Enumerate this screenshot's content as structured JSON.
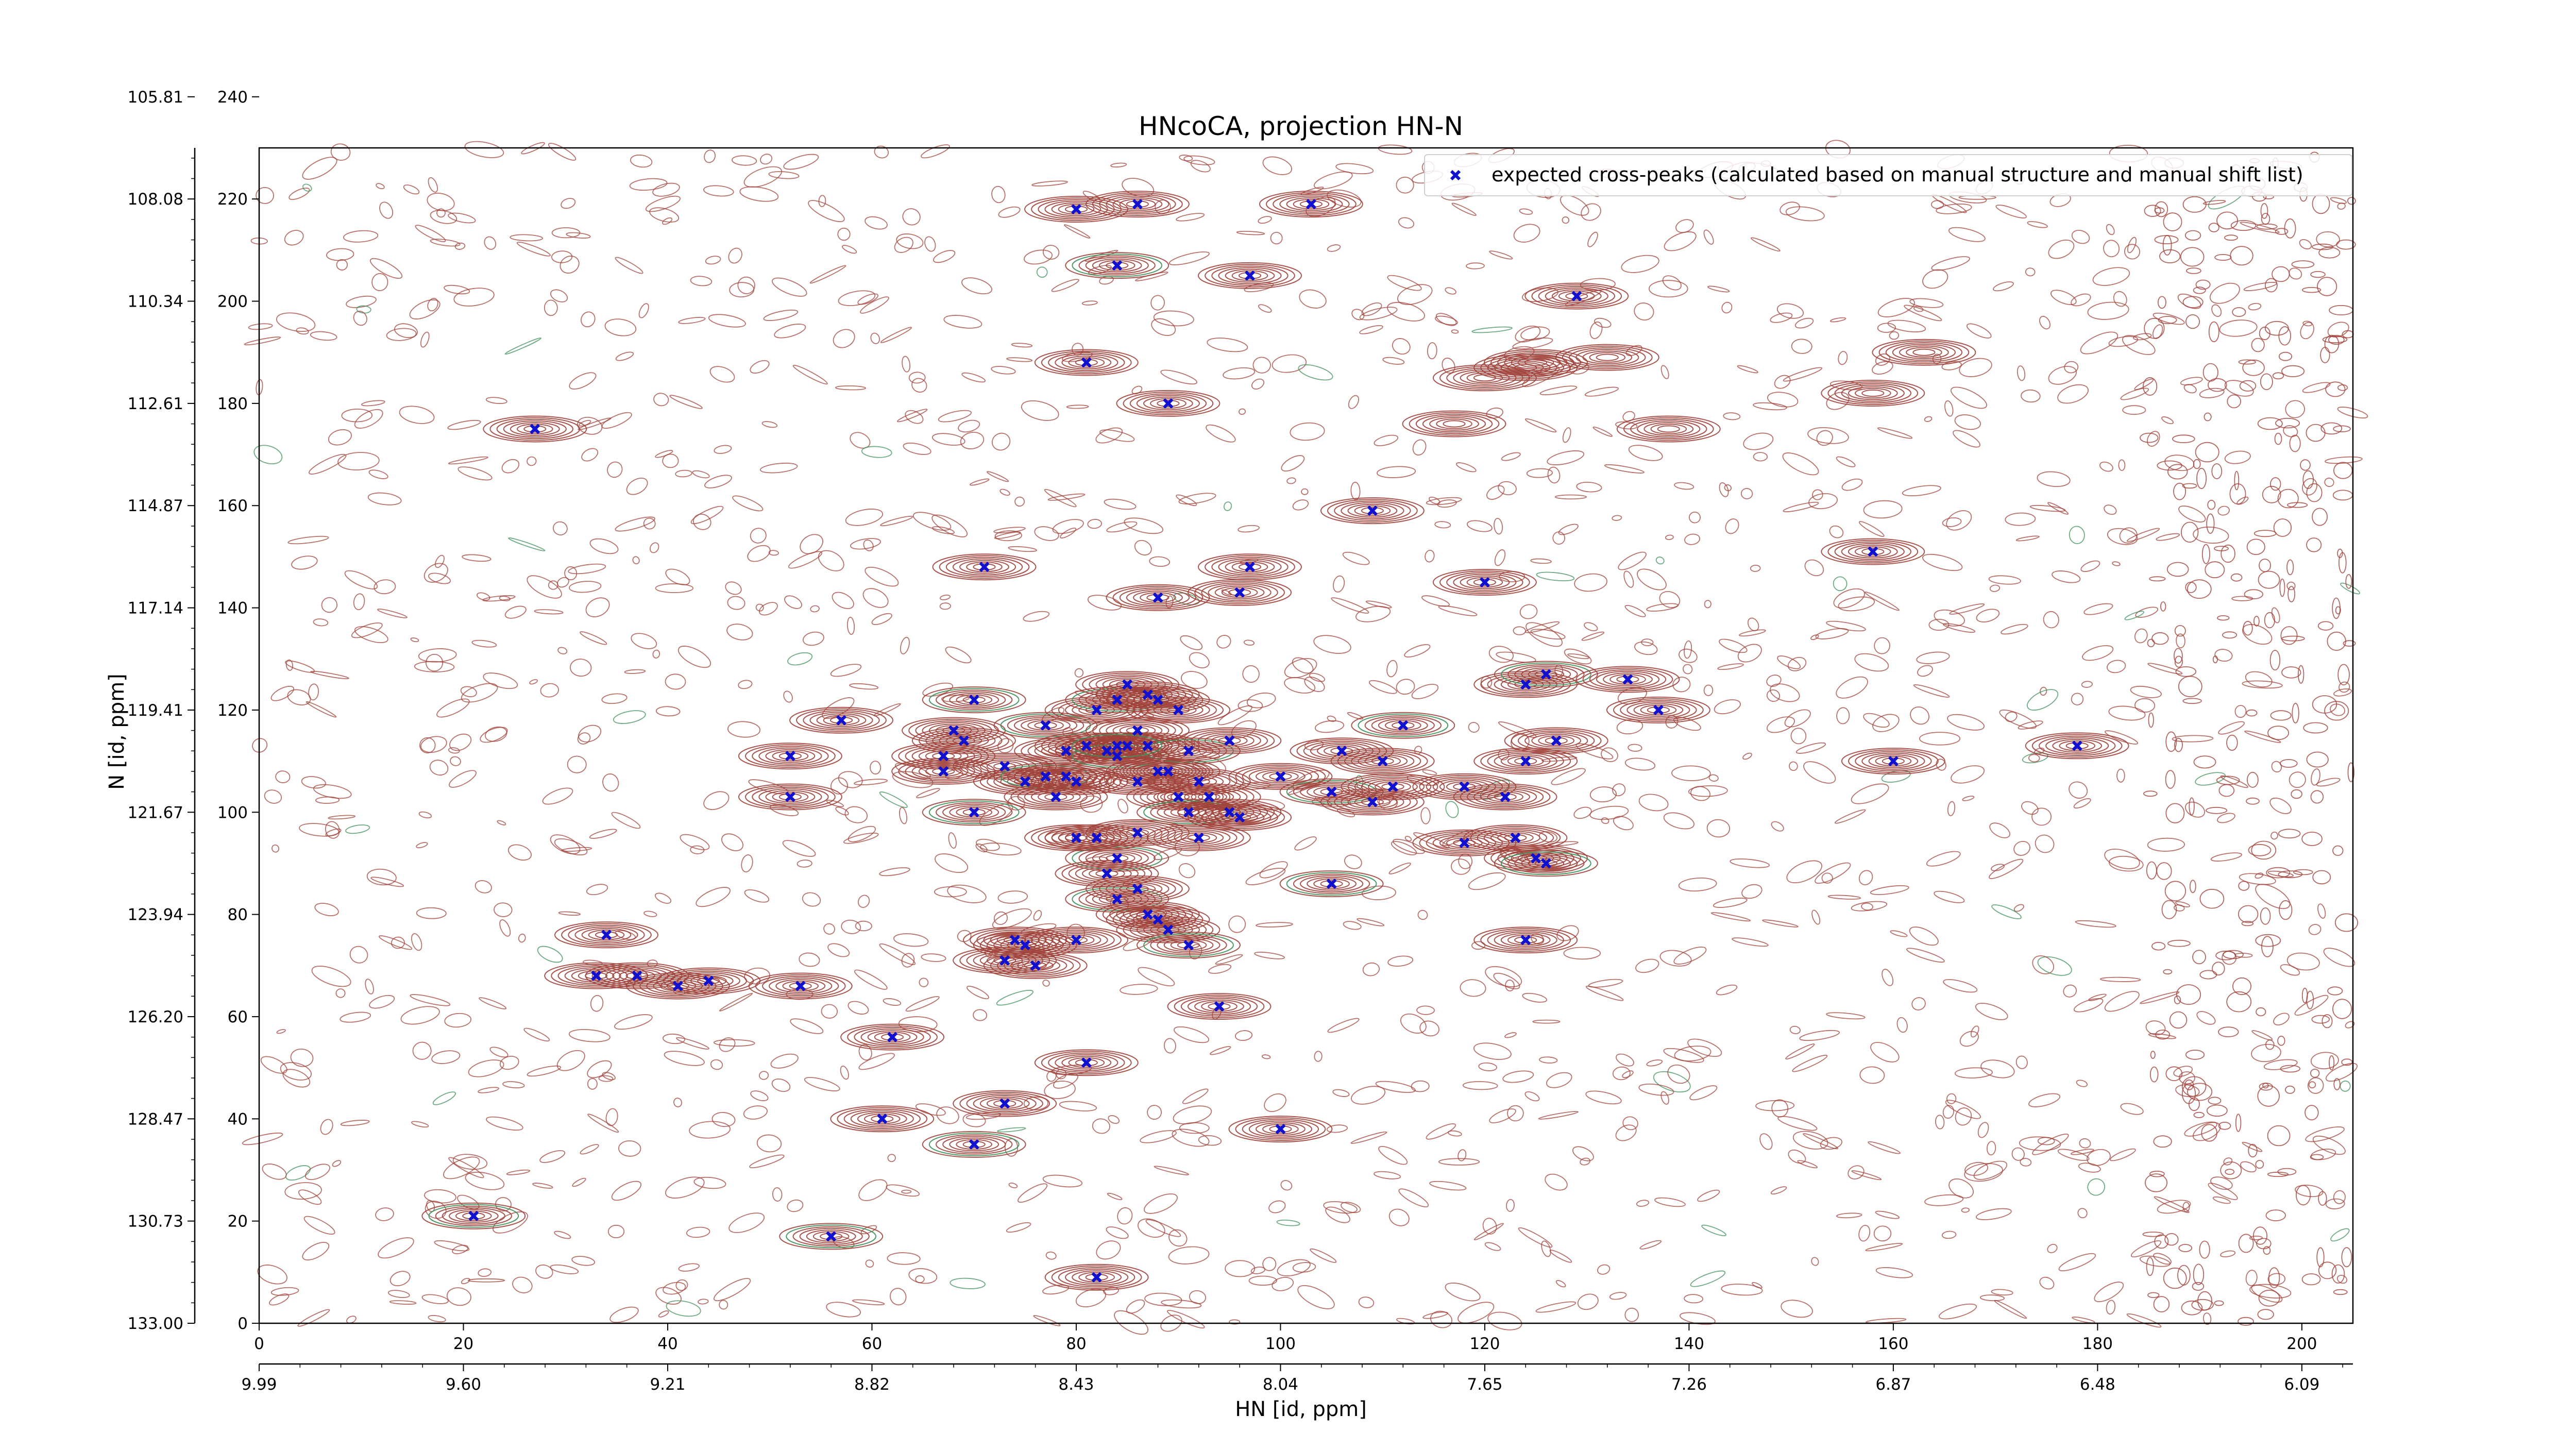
{
  "chart_data": {
    "type": "scatter",
    "title": "HNcoCA, projection HN-N",
    "xlabel": "HN [id, ppm]",
    "ylabel": "N [id, ppm]",
    "xlim": [
      0,
      205
    ],
    "ylim": [
      0,
      230
    ],
    "x_ticks": [
      0,
      20,
      40,
      60,
      80,
      100,
      120,
      140,
      160,
      180,
      200
    ],
    "y_ticks": [
      0,
      20,
      40,
      60,
      80,
      100,
      120,
      140,
      160,
      180,
      200,
      220,
      240
    ],
    "secondary_x_ticks": [
      {
        "x": 0,
        "label": "9.99"
      },
      {
        "x": 20,
        "label": "9.60"
      },
      {
        "x": 40,
        "label": "9.21"
      },
      {
        "x": 60,
        "label": "8.82"
      },
      {
        "x": 80,
        "label": "8.43"
      },
      {
        "x": 100,
        "label": "8.04"
      },
      {
        "x": 120,
        "label": "7.65"
      },
      {
        "x": 140,
        "label": "7.26"
      },
      {
        "x": 160,
        "label": "6.87"
      },
      {
        "x": 180,
        "label": "6.48"
      },
      {
        "x": 200,
        "label": "6.09"
      }
    ],
    "secondary_y_ticks": [
      {
        "y": 0,
        "label": "133.00"
      },
      {
        "y": 20,
        "label": "130.73"
      },
      {
        "y": 40,
        "label": "128.47"
      },
      {
        "y": 60,
        "label": "126.20"
      },
      {
        "y": 80,
        "label": "123.94"
      },
      {
        "y": 100,
        "label": "121.67"
      },
      {
        "y": 120,
        "label": "119.41"
      },
      {
        "y": 140,
        "label": "117.14"
      },
      {
        "y": 160,
        "label": "114.87"
      },
      {
        "y": 180,
        "label": "112.61"
      },
      {
        "y": 200,
        "label": "110.34"
      },
      {
        "y": 220,
        "label": "108.08"
      },
      {
        "y": 240,
        "label": "105.81"
      }
    ],
    "legend": {
      "position": "top-right",
      "entries": [
        "expected cross-peaks (calculated based on manual structure and manual shift list)"
      ]
    },
    "colors": {
      "contour": "#a0413a",
      "contour_negative": "#3c8f5a",
      "marker": "#1010d0"
    },
    "series": [
      {
        "name": "expected cross-peaks (calculated based on manual structure and manual shift list)",
        "marker": "x",
        "points": [
          [
            21,
            21
          ],
          [
            27,
            175
          ],
          [
            33,
            68
          ],
          [
            37,
            68
          ],
          [
            41,
            66
          ],
          [
            44,
            67
          ],
          [
            34,
            76
          ],
          [
            53,
            66
          ],
          [
            52,
            103
          ],
          [
            52,
            111
          ],
          [
            57,
            118
          ],
          [
            61,
            40
          ],
          [
            56,
            17
          ],
          [
            62,
            56
          ],
          [
            70,
            122
          ],
          [
            70,
            100
          ],
          [
            70,
            35
          ],
          [
            71,
            148
          ],
          [
            73,
            43
          ],
          [
            67,
            111
          ],
          [
            68,
            116
          ],
          [
            67,
            108
          ],
          [
            69,
            114
          ],
          [
            73,
            109
          ],
          [
            75,
            106
          ],
          [
            77,
            107
          ],
          [
            78,
            103
          ],
          [
            79,
            107
          ],
          [
            80,
            106
          ],
          [
            74,
            75
          ],
          [
            75,
            74
          ],
          [
            73,
            71
          ],
          [
            76,
            70
          ],
          [
            80,
            75
          ],
          [
            81,
            51
          ],
          [
            82,
            9
          ],
          [
            81,
            188
          ],
          [
            84,
            207
          ],
          [
            80,
            218
          ],
          [
            86,
            219
          ],
          [
            89,
            180
          ],
          [
            88,
            142
          ],
          [
            96,
            143
          ],
          [
            97,
            148
          ],
          [
            97,
            205
          ],
          [
            103,
            219
          ],
          [
            109,
            159
          ],
          [
            129,
            201
          ],
          [
            77,
            117
          ],
          [
            79,
            112
          ],
          [
            81,
            113
          ],
          [
            83,
            112
          ],
          [
            84,
            111
          ],
          [
            86,
            116
          ],
          [
            85,
            113
          ],
          [
            86,
            106
          ],
          [
            87,
            113
          ],
          [
            89,
            108
          ],
          [
            91,
            112
          ],
          [
            92,
            106
          ],
          [
            93,
            103
          ],
          [
            90,
            103
          ],
          [
            88,
            108
          ],
          [
            91,
            100
          ],
          [
            95,
            100
          ],
          [
            96,
            99
          ],
          [
            92,
            95
          ],
          [
            86,
            96
          ],
          [
            84,
            91
          ],
          [
            82,
            95
          ],
          [
            80,
            95
          ],
          [
            83,
            88
          ],
          [
            84,
            83
          ],
          [
            86,
            85
          ],
          [
            87,
            80
          ],
          [
            88,
            79
          ],
          [
            89,
            77
          ],
          [
            91,
            74
          ],
          [
            94,
            62
          ],
          [
            100,
            38
          ],
          [
            105,
            86
          ],
          [
            105,
            104
          ],
          [
            106,
            112
          ],
          [
            109,
            102
          ],
          [
            110,
            110
          ],
          [
            111,
            105
          ],
          [
            112,
            117
          ],
          [
            118,
            105
          ],
          [
            118,
            94
          ],
          [
            120,
            145
          ],
          [
            122,
            103
          ],
          [
            123,
            95
          ],
          [
            124,
            110
          ],
          [
            124,
            125
          ],
          [
            124,
            75
          ],
          [
            125,
            91
          ],
          [
            126,
            90
          ],
          [
            126,
            127
          ],
          [
            127,
            114
          ],
          [
            134,
            126
          ],
          [
            137,
            120
          ],
          [
            158,
            151
          ],
          [
            160,
            110
          ],
          [
            178,
            113
          ],
          [
            82,
            120
          ],
          [
            84,
            122
          ],
          [
            85,
            125
          ],
          [
            87,
            123
          ],
          [
            88,
            122
          ],
          [
            90,
            120
          ],
          [
            84,
            113
          ],
          [
            95,
            114
          ],
          [
            100,
            107
          ]
        ]
      }
    ],
    "peaks_note": ""
  }
}
